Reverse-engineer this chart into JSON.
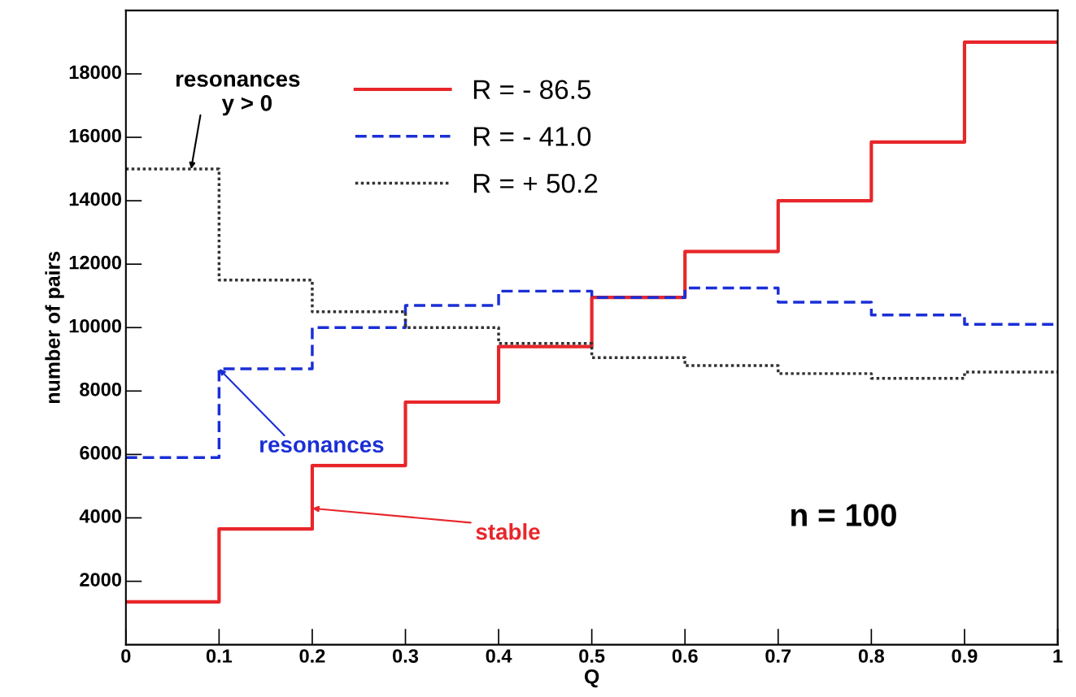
{
  "chart_data": {
    "type": "step",
    "xlabel": "Q",
    "ylabel": "number of pairs",
    "x": [
      0,
      0.1,
      0.2,
      0.3,
      0.4,
      0.5,
      0.6,
      0.7,
      0.8,
      0.9,
      1.0
    ],
    "series": [
      {
        "name": "R = - 86.5",
        "color": "#e8262a",
        "line_style": "solid",
        "values": [
          1350,
          3650,
          5650,
          7650,
          9400,
          10950,
          12400,
          14000,
          15850,
          19000,
          19000
        ]
      },
      {
        "name": "R = - 41.0",
        "color": "#1a2fd6",
        "line_style": "dashed",
        "values": [
          5900,
          8700,
          10000,
          10700,
          11150,
          10950,
          11250,
          10800,
          10400,
          10100,
          10100
        ]
      },
      {
        "name": "R = + 50.2",
        "color": "#333333",
        "line_style": "dotted",
        "values": [
          15000,
          11500,
          10500,
          10000,
          9500,
          9050,
          8800,
          8550,
          8400,
          8600,
          8600
        ]
      }
    ],
    "xlim": [
      0,
      1
    ],
    "ylim": [
      0,
      20000
    ],
    "xticks": [
      0,
      0.1,
      0.2,
      0.3,
      0.4,
      0.5,
      0.6,
      0.7,
      0.8,
      0.9,
      1
    ],
    "yticks": [
      2000,
      4000,
      6000,
      8000,
      10000,
      12000,
      14000,
      16000,
      18000
    ],
    "legend": "top left",
    "grid": false,
    "annotations": [
      {
        "text": "resonances\n   y > 0",
        "x": 0.07,
        "y": 15000
      },
      {
        "text": "resonances",
        "x": 0.1,
        "y": 8700
      },
      {
        "text": "stable",
        "x": 0.2,
        "y": 4300
      },
      "n = 100"
    ]
  }
}
